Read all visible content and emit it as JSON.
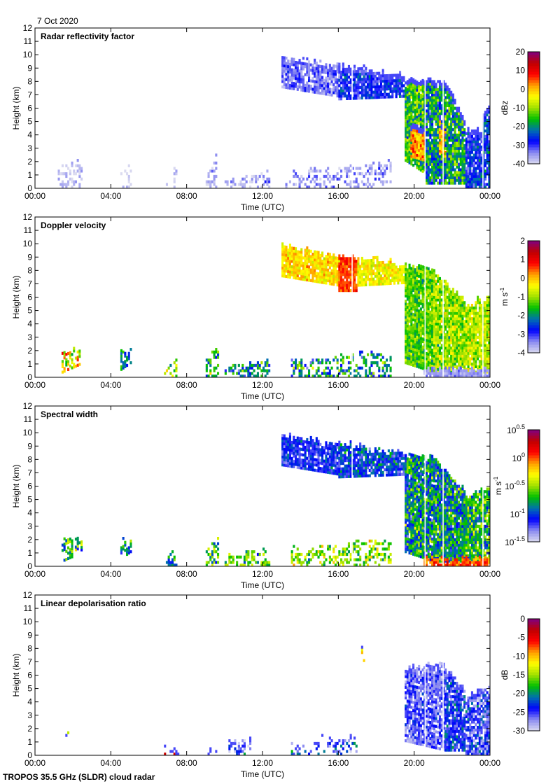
{
  "date_label": "7 Oct 2020",
  "footer": "TROPOS 35.5 GHz (SLDR) cloud radar",
  "colormap": [
    "#dcdcf0",
    "#8c8cf0",
    "#0000ff",
    "#0070b0",
    "#00c000",
    "#a0e000",
    "#ffff00",
    "#ffa000",
    "#ff0000",
    "#c00000",
    "#800080"
  ],
  "chart_data": [
    {
      "type": "heatmap",
      "title": "Radar reflectivity factor",
      "xlabel": "Time (UTC)",
      "ylabel": "Height (km)",
      "xlim": [
        0,
        24
      ],
      "ylim": [
        0,
        12
      ],
      "xticks": [
        "00:00",
        "04:00",
        "08:00",
        "12:00",
        "16:00",
        "20:00",
        "00:00"
      ],
      "yticks": [
        0,
        1,
        2,
        3,
        4,
        5,
        6,
        7,
        8,
        9,
        10,
        11,
        12
      ],
      "colorbar": {
        "label": "dBz",
        "range": [
          -40,
          20
        ],
        "scale": "linear",
        "ticks": [
          "20",
          "10",
          "0",
          "-10",
          "-20",
          "-30",
          "-40"
        ],
        "tick_values": [
          20,
          10,
          0,
          -10,
          -20,
          -30,
          -40
        ]
      },
      "regions_columns": [
        "t_start_h",
        "t_end_h",
        "base_start_km",
        "base_end_km",
        "top_start_km",
        "top_end_km",
        "value",
        "spread",
        "coverage"
      ],
      "regions": [
        [
          1.2,
          2.5,
          0,
          0,
          1.4,
          2.0,
          -38,
          3,
          0.35
        ],
        [
          4.5,
          5.0,
          0,
          0,
          1.0,
          1.8,
          -38,
          3,
          0.3
        ],
        [
          6.8,
          7.4,
          0,
          0,
          0.3,
          1.5,
          -38,
          3,
          0.3
        ],
        [
          9.0,
          9.5,
          0,
          0,
          1.0,
          2.1,
          -37,
          4,
          0.5
        ],
        [
          10,
          12.3,
          0,
          0,
          0.5,
          1.2,
          -36,
          5,
          0.4
        ],
        [
          13.2,
          18.8,
          0,
          0,
          1.2,
          1.8,
          -35,
          5,
          0.35
        ],
        [
          13.0,
          16.0,
          7.5,
          6.8,
          9.8,
          9.0,
          -33,
          5,
          0.85
        ],
        [
          16.0,
          19.5,
          6.6,
          6.8,
          9.1,
          8.4,
          -28,
          6,
          0.9
        ],
        [
          19.5,
          20.6,
          2.0,
          1.0,
          8.0,
          8.2,
          -15,
          9,
          0.95
        ],
        [
          19.8,
          20.6,
          2.3,
          2.0,
          4.5,
          4.5,
          2,
          6,
          0.95
        ],
        [
          20.6,
          21.6,
          0.3,
          0.3,
          8.2,
          7.8,
          -20,
          10,
          0.9
        ],
        [
          21.3,
          21.8,
          2.5,
          2.0,
          5.0,
          5.0,
          0,
          6,
          0.9
        ],
        [
          21.6,
          22.7,
          0.3,
          0.3,
          7.8,
          5.0,
          -18,
          10,
          0.9
        ],
        [
          22.7,
          23.6,
          0,
          0,
          4.5,
          4.0,
          -27,
          7,
          0.9
        ],
        [
          23.6,
          24,
          0,
          0,
          5.5,
          6.0,
          -25,
          7,
          0.9
        ]
      ],
      "data_gaps_h": [
        16.7,
        20.55,
        21.5,
        23.6
      ]
    },
    {
      "type": "heatmap",
      "title": "Doppler velocity",
      "xlabel": "Time (UTC)",
      "ylabel": "Height (km)",
      "xlim": [
        0,
        24
      ],
      "ylim": [
        0,
        12
      ],
      "xticks": [
        "00:00",
        "04:00",
        "08:00",
        "12:00",
        "16:00",
        "20:00",
        "00:00"
      ],
      "yticks": [
        0,
        1,
        2,
        3,
        4,
        5,
        6,
        7,
        8,
        9,
        10,
        11,
        12
      ],
      "colorbar": {
        "label": "m s",
        "label_sup": "-1",
        "range": [
          -4,
          2
        ],
        "scale": "linear",
        "ticks": [
          "2",
          "1",
          "0",
          "-1",
          "-2",
          "-3",
          "-4"
        ],
        "tick_values": [
          2,
          1,
          0,
          -1,
          -2,
          -3,
          -4
        ]
      },
      "regions_columns": [
        "t_start_h",
        "t_end_h",
        "base_start_km",
        "base_end_km",
        "top_start_km",
        "top_end_km",
        "value",
        "spread",
        "coverage"
      ],
      "regions": [
        [
          1.4,
          2.5,
          0.3,
          1.0,
          2.0,
          2.0,
          -0.5,
          1.2,
          0.5
        ],
        [
          4.5,
          5.0,
          0.5,
          1.0,
          2.0,
          1.8,
          -2,
          0.8,
          0.5
        ],
        [
          6.8,
          7.4,
          0,
          0,
          0.5,
          1.2,
          -1,
          1,
          0.4
        ],
        [
          9.0,
          9.6,
          0,
          0,
          1.2,
          2.1,
          -1.5,
          1.2,
          0.5
        ],
        [
          10,
          12.3,
          0,
          0,
          0.6,
          1.2,
          -2,
          1,
          0.5
        ],
        [
          13.5,
          18.8,
          0,
          0,
          1.2,
          1.9,
          -2,
          1,
          0.4
        ],
        [
          13,
          16,
          7.5,
          6.8,
          9.8,
          9.0,
          -0.2,
          0.5,
          0.9
        ],
        [
          16,
          17,
          6.4,
          6.4,
          9.1,
          8.9,
          0.6,
          0.4,
          0.95
        ],
        [
          17,
          19.5,
          6.8,
          7.0,
          8.8,
          8.4,
          -0.4,
          0.5,
          0.9
        ],
        [
          19.5,
          21.0,
          1.0,
          0.3,
          8.3,
          8.1,
          -1.3,
          0.6,
          0.95
        ],
        [
          21,
          22.7,
          0.3,
          0.3,
          8.0,
          5.5,
          -1,
          0.7,
          0.95
        ],
        [
          22.7,
          24,
          0.3,
          0.3,
          5.2,
          6.0,
          -0.8,
          0.7,
          0.95
        ],
        [
          20.5,
          24,
          0,
          0,
          0.5,
          0.5,
          -3.5,
          0.3,
          0.9
        ]
      ],
      "data_gaps_h": [
        16.7,
        20.55,
        21.5,
        23.6
      ]
    },
    {
      "type": "heatmap",
      "title": "Spectral width",
      "xlabel": "Time (UTC)",
      "ylabel": "Height (km)",
      "xlim": [
        0,
        24
      ],
      "ylim": [
        0,
        12
      ],
      "xticks": [
        "00:00",
        "04:00",
        "08:00",
        "12:00",
        "16:00",
        "20:00",
        "00:00"
      ],
      "yticks": [
        0,
        1,
        2,
        3,
        4,
        5,
        6,
        7,
        8,
        9,
        10,
        11,
        12
      ],
      "colorbar": {
        "label": "m s",
        "label_sup": "-1",
        "range": [
          0.0316,
          3.16
        ],
        "scale": "log",
        "ticks": [
          "0.5",
          "0",
          "-0.5",
          "-1",
          "-1.5"
        ],
        "tick_base": "10",
        "tick_values": [
          3.16,
          1,
          0.316,
          0.1,
          0.0316
        ]
      },
      "regions_columns": [
        "t_start_h",
        "t_end_h",
        "base_start_km",
        "base_end_km",
        "top_start_km",
        "top_end_km",
        "value",
        "spread",
        "coverage"
      ],
      "regions": [
        [
          1.4,
          2.5,
          0.3,
          1.0,
          2.0,
          2.0,
          0.2,
          0.3,
          0.5
        ],
        [
          4.5,
          5.0,
          0.5,
          1.0,
          2.0,
          1.8,
          0.15,
          0.3,
          0.5
        ],
        [
          6.8,
          7.4,
          0,
          0,
          0.5,
          1.2,
          0.15,
          0.3,
          0.4
        ],
        [
          9.0,
          9.6,
          0,
          0,
          1.2,
          2.1,
          0.2,
          0.3,
          0.5
        ],
        [
          10,
          12.3,
          0,
          0,
          0.6,
          1.2,
          0.25,
          0.3,
          0.5
        ],
        [
          13.5,
          18.8,
          0,
          0,
          1.2,
          1.9,
          0.3,
          0.3,
          0.4
        ],
        [
          13,
          16,
          7.5,
          6.8,
          9.8,
          9.0,
          0.08,
          0.2,
          0.9
        ],
        [
          16,
          19.5,
          6.6,
          6.8,
          9.1,
          8.4,
          0.1,
          0.25,
          0.9
        ],
        [
          19.5,
          21.0,
          1.0,
          0.3,
          8.3,
          8.1,
          0.15,
          0.35,
          0.95
        ],
        [
          21,
          22.7,
          0.3,
          0.3,
          8.0,
          5.5,
          0.15,
          0.35,
          0.95
        ],
        [
          22.7,
          24,
          0.3,
          0.3,
          5.2,
          6.0,
          0.2,
          0.35,
          0.95
        ],
        [
          20.5,
          24,
          0,
          0,
          0.5,
          0.5,
          1.0,
          0.2,
          0.9
        ]
      ],
      "data_gaps_h": [
        16.7,
        20.55,
        21.5,
        23.6
      ]
    },
    {
      "type": "heatmap",
      "title": "Linear depolarisation ratio",
      "xlabel": "Time (UTC)",
      "ylabel": "Height (km)",
      "xlim": [
        0,
        24
      ],
      "ylim": [
        0,
        12
      ],
      "xticks": [
        "00:00",
        "04:00",
        "08:00",
        "12:00",
        "16:00",
        "20:00",
        "00:00"
      ],
      "yticks": [
        0,
        1,
        2,
        3,
        4,
        5,
        6,
        7,
        8,
        9,
        10,
        11,
        12
      ],
      "colorbar": {
        "label": "dB",
        "range": [
          -30,
          0
        ],
        "scale": "linear",
        "ticks": [
          "0",
          "-5",
          "-10",
          "-15",
          "-20",
          "-25",
          "-30"
        ],
        "tick_values": [
          0,
          -5,
          -10,
          -15,
          -20,
          -25,
          -30
        ]
      },
      "regions_columns": [
        "t_start_h",
        "t_end_h",
        "base_start_km",
        "base_end_km",
        "top_start_km",
        "top_end_km",
        "value",
        "spread",
        "coverage"
      ],
      "regions": [
        [
          19.5,
          21.6,
          1.0,
          0.3,
          6.5,
          6.8,
          -26,
          3,
          0.85
        ],
        [
          21.6,
          22.7,
          0.3,
          0.3,
          6.5,
          4.8,
          -24,
          4,
          0.85
        ],
        [
          22.7,
          24,
          0,
          0,
          4.3,
          5.2,
          -25,
          4,
          0.8
        ],
        [
          10.2,
          11.3,
          0,
          0,
          1.0,
          1.3,
          -25,
          5,
          0.5
        ],
        [
          13.5,
          17,
          0,
          0,
          0.8,
          1.5,
          -25,
          6,
          0.3
        ],
        [
          1.5,
          1.8,
          0,
          0,
          2,
          2,
          -15,
          8,
          0.1
        ],
        [
          6.8,
          7.5,
          0,
          0,
          0.3,
          0.3,
          -5,
          3,
          0.5
        ],
        [
          9.0,
          9.5,
          0,
          0,
          0.3,
          0.3,
          -5,
          3,
          0.5
        ],
        [
          17.2,
          17.4,
          7.0,
          7.0,
          8.0,
          8.0,
          -8,
          6,
          0.3
        ]
      ],
      "data_gaps_h": [
        20.55,
        21.5
      ]
    }
  ]
}
